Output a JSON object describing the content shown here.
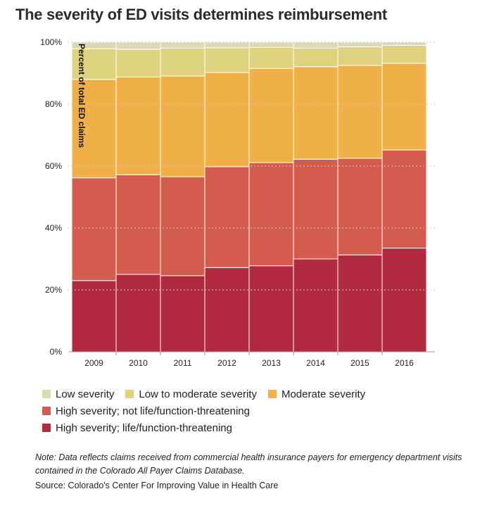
{
  "title": "The severity of ED visits determines reimbursement",
  "chart_data": {
    "type": "bar",
    "stacked": true,
    "normalized": true,
    "categories": [
      "2009",
      "2010",
      "2011",
      "2012",
      "2013",
      "2014",
      "2015",
      "2016"
    ],
    "ylabel": "Percent of total ED claims",
    "ylim": [
      0,
      100
    ],
    "yticks": [
      "0%",
      "20%",
      "40%",
      "60%",
      "80%",
      "100%"
    ],
    "grid": true,
    "legend_position": "bottom",
    "series": [
      {
        "name": "High severity; life/function-threatening",
        "color": "#b12a3e",
        "values": [
          23,
          25,
          24.6,
          27.2,
          27.8,
          30,
          31.3,
          33.5
        ]
      },
      {
        "name": "High severity; not life/function-threatening",
        "color": "#d35c4e",
        "values": [
          33.2,
          32.2,
          31.9,
          32.6,
          33.3,
          32.2,
          31.2,
          31.7
        ]
      },
      {
        "name": "Moderate severity",
        "color": "#f0b047",
        "values": [
          31.8,
          31.6,
          32.6,
          30.4,
          30.4,
          29.9,
          30,
          28
        ]
      },
      {
        "name": "Low to moderate severity",
        "color": "#dfd27e",
        "values": [
          9.9,
          8.9,
          9,
          8,
          6.8,
          6,
          6,
          5.8
        ]
      },
      {
        "name": "Low severity",
        "color": "#ddd7b4",
        "values": [
          2.1,
          2.3,
          1.9,
          1.8,
          1.7,
          1.9,
          1.5,
          1
        ]
      }
    ]
  },
  "legend": {
    "rows": [
      [
        {
          "label": "Low severity",
          "color": "#ddd7b4"
        },
        {
          "label": "Low to moderate severity",
          "color": "#dfd27e"
        },
        {
          "label": "Moderate severity",
          "color": "#f0b047"
        }
      ],
      [
        {
          "label": "High severity; not life/function-threatening",
          "color": "#d35c4e"
        }
      ],
      [
        {
          "label": "High severity; life/function-threatening",
          "color": "#b12a3e"
        }
      ]
    ]
  },
  "note": "Note: Data reflects claims received from commercial health insurance payers for emergency department visits contained in the Colorado All Payer Claims Database.",
  "source": "Source: Colorado's Center For Improving Value in Health Care"
}
